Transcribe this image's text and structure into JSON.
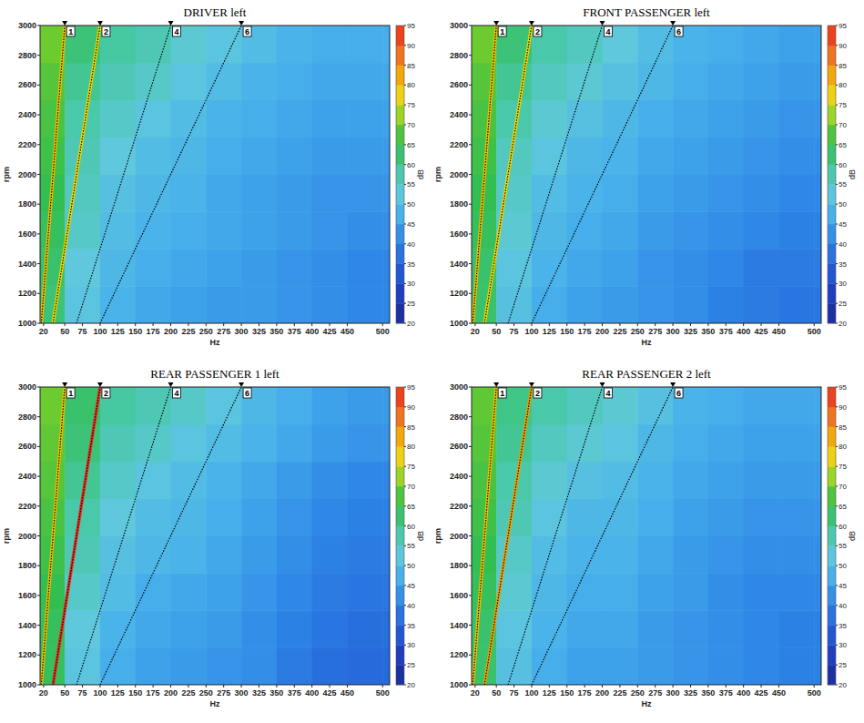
{
  "chart_data": [
    {
      "type": "heatmap",
      "title": "DRIVER left",
      "x_label": "Hz",
      "y_label": "rpm",
      "xlim": [
        15,
        510
      ],
      "ylim": [
        1000,
        3000
      ],
      "xticks": [
        20,
        50,
        75,
        100,
        125,
        150,
        175,
        200,
        225,
        250,
        275,
        300,
        325,
        350,
        375,
        400,
        425,
        450,
        500
      ],
      "yticks": [
        1000,
        1200,
        1400,
        1600,
        1800,
        2000,
        2200,
        2400,
        2600,
        2800,
        3000
      ],
      "x_edges": [
        15,
        50,
        100,
        150,
        200,
        250,
        300,
        350,
        400,
        450,
        500,
        510
      ],
      "y_edges": [
        1000,
        1250,
        1500,
        1750,
        2000,
        2250,
        2500,
        2750,
        3000
      ],
      "cells": [
        [
          62,
          52,
          48,
          46,
          45,
          44,
          44,
          43,
          42,
          41,
          41
        ],
        [
          63,
          53,
          49,
          47,
          46,
          45,
          44,
          43,
          42,
          41,
          41
        ],
        [
          64,
          55,
          50,
          48,
          47,
          46,
          45,
          44,
          43,
          42,
          42
        ],
        [
          65,
          56,
          51,
          49,
          48,
          46,
          45,
          44,
          43,
          43,
          43
        ],
        [
          66,
          57,
          53,
          50,
          49,
          47,
          46,
          45,
          44,
          44,
          44
        ],
        [
          67,
          58,
          55,
          52,
          50,
          48,
          47,
          46,
          45,
          45,
          45
        ],
        [
          68,
          60,
          57,
          55,
          52,
          50,
          48,
          47,
          46,
          46,
          46
        ],
        [
          70,
          62,
          59,
          57,
          54,
          52,
          50,
          48,
          47,
          47,
          47
        ]
      ],
      "colorbar_label": "dB",
      "colorbar_lim": [
        20,
        95
      ],
      "colorbar_ticks": [
        20,
        25,
        30,
        35,
        40,
        45,
        50,
        55,
        60,
        65,
        70,
        75,
        80,
        85,
        90,
        95
      ],
      "series": [
        {
          "name": "1",
          "color": "#f0c000",
          "x": [
            16.7,
            50
          ],
          "y": [
            1000,
            3000
          ]
        },
        {
          "name": "2",
          "color": "#f0d800",
          "x": [
            33.3,
            100
          ],
          "y": [
            1000,
            3000
          ]
        },
        {
          "name": "4",
          "color": "#000000",
          "x": [
            66.7,
            200
          ],
          "y": [
            1000,
            3000
          ]
        },
        {
          "name": "6",
          "color": "#000000",
          "x": [
            100,
            300
          ],
          "y": [
            1000,
            3000
          ]
        }
      ]
    },
    {
      "type": "heatmap",
      "title": "FRONT PASSENGER left",
      "x_label": "Hz",
      "y_label": "rpm",
      "xlim": [
        15,
        510
      ],
      "ylim": [
        1000,
        3000
      ],
      "xticks": [
        20,
        50,
        75,
        100,
        125,
        150,
        175,
        200,
        225,
        250,
        275,
        300,
        325,
        350,
        375,
        400,
        425,
        450,
        500
      ],
      "yticks": [
        1000,
        1200,
        1400,
        1600,
        1800,
        2000,
        2200,
        2400,
        2600,
        2800,
        3000
      ],
      "x_edges": [
        15,
        50,
        100,
        150,
        200,
        250,
        300,
        350,
        400,
        450,
        500,
        510
      ],
      "y_edges": [
        1000,
        1250,
        1500,
        1750,
        2000,
        2250,
        2500,
        2750,
        3000
      ],
      "cells": [
        [
          63,
          51,
          47,
          45,
          44,
          43,
          42,
          40,
          39,
          38,
          38
        ],
        [
          63,
          52,
          48,
          46,
          45,
          43,
          42,
          41,
          39,
          39,
          39
        ],
        [
          64,
          54,
          49,
          47,
          46,
          44,
          43,
          42,
          41,
          40,
          40
        ],
        [
          65,
          55,
          50,
          48,
          47,
          45,
          44,
          43,
          42,
          41,
          41
        ],
        [
          66,
          56,
          52,
          49,
          48,
          46,
          45,
          44,
          43,
          42,
          42
        ],
        [
          67,
          58,
          54,
          51,
          49,
          47,
          46,
          45,
          44,
          43,
          43
        ],
        [
          68,
          60,
          56,
          54,
          51,
          49,
          47,
          46,
          45,
          44,
          44
        ],
        [
          70,
          62,
          58,
          56,
          53,
          50,
          48,
          47,
          46,
          45,
          45
        ]
      ],
      "colorbar_label": "dB",
      "colorbar_lim": [
        20,
        95
      ],
      "colorbar_ticks": [
        20,
        25,
        30,
        35,
        40,
        45,
        50,
        55,
        60,
        65,
        70,
        75,
        80,
        85,
        90,
        95
      ],
      "series": [
        {
          "name": "1",
          "color": "#f0c000",
          "x": [
            16.7,
            50
          ],
          "y": [
            1000,
            3000
          ]
        },
        {
          "name": "2",
          "color": "#f0d800",
          "x": [
            33.3,
            100
          ],
          "y": [
            1000,
            3000
          ]
        },
        {
          "name": "4",
          "color": "#000000",
          "x": [
            66.7,
            200
          ],
          "y": [
            1000,
            3000
          ]
        },
        {
          "name": "6",
          "color": "#000000",
          "x": [
            100,
            300
          ],
          "y": [
            1000,
            3000
          ]
        }
      ]
    },
    {
      "type": "heatmap",
      "title": "REAR PASSENGER 1 left",
      "x_label": "Hz",
      "y_label": "rpm",
      "xlim": [
        15,
        510
      ],
      "ylim": [
        1000,
        3000
      ],
      "xticks": [
        20,
        50,
        75,
        100,
        125,
        150,
        175,
        200,
        225,
        250,
        275,
        300,
        325,
        350,
        375,
        400,
        425,
        450,
        500
      ],
      "yticks": [
        1000,
        1200,
        1400,
        1600,
        1800,
        2000,
        2200,
        2400,
        2600,
        2800,
        3000
      ],
      "x_edges": [
        15,
        50,
        100,
        150,
        200,
        250,
        300,
        350,
        400,
        450,
        500,
        510
      ],
      "y_edges": [
        1000,
        1250,
        1500,
        1750,
        2000,
        2250,
        2500,
        2750,
        3000
      ],
      "cells": [
        [
          64,
          52,
          47,
          45,
          44,
          43,
          42,
          39,
          37,
          36,
          36
        ],
        [
          64,
          53,
          48,
          46,
          45,
          44,
          42,
          40,
          38,
          37,
          37
        ],
        [
          65,
          55,
          50,
          47,
          46,
          45,
          43,
          41,
          39,
          38,
          38
        ],
        [
          66,
          57,
          51,
          49,
          48,
          46,
          44,
          42,
          40,
          39,
          39
        ],
        [
          67,
          58,
          53,
          50,
          49,
          47,
          45,
          43,
          41,
          40,
          40
        ],
        [
          68,
          60,
          55,
          52,
          50,
          48,
          46,
          44,
          42,
          41,
          41
        ],
        [
          69,
          62,
          57,
          55,
          52,
          50,
          48,
          46,
          44,
          43,
          43
        ],
        [
          70,
          63,
          59,
          57,
          55,
          52,
          49,
          47,
          45,
          44,
          44
        ]
      ],
      "colorbar_label": "dB",
      "colorbar_lim": [
        20,
        95
      ],
      "colorbar_ticks": [
        20,
        25,
        30,
        35,
        40,
        45,
        50,
        55,
        60,
        65,
        70,
        75,
        80,
        85,
        90,
        95
      ],
      "series": [
        {
          "name": "1",
          "color": "#f0c000",
          "x": [
            16.7,
            50
          ],
          "y": [
            1000,
            3000
          ]
        },
        {
          "name": "2",
          "color": "#e83020",
          "x": [
            33.3,
            100
          ],
          "y": [
            1000,
            3000
          ]
        },
        {
          "name": "4",
          "color": "#000000",
          "x": [
            66.7,
            200
          ],
          "y": [
            1000,
            3000
          ]
        },
        {
          "name": "6",
          "color": "#000000",
          "x": [
            100,
            300
          ],
          "y": [
            1000,
            3000
          ]
        }
      ]
    },
    {
      "type": "heatmap",
      "title": "REAR PASSENGER 2 left",
      "x_label": "Hz",
      "y_label": "rpm",
      "xlim": [
        15,
        510
      ],
      "ylim": [
        1000,
        3000
      ],
      "xticks": [
        20,
        50,
        75,
        100,
        125,
        150,
        175,
        200,
        225,
        250,
        275,
        300,
        325,
        350,
        375,
        400,
        425,
        450,
        500
      ],
      "yticks": [
        1000,
        1200,
        1400,
        1600,
        1800,
        2000,
        2200,
        2400,
        2600,
        2800,
        3000
      ],
      "x_edges": [
        15,
        50,
        100,
        150,
        200,
        250,
        300,
        350,
        400,
        450,
        500,
        510
      ],
      "y_edges": [
        1000,
        1250,
        1500,
        1750,
        2000,
        2250,
        2500,
        2750,
        3000
      ],
      "cells": [
        [
          63,
          51,
          47,
          45,
          45,
          44,
          43,
          42,
          41,
          40,
          40
        ],
        [
          63,
          52,
          48,
          46,
          46,
          44,
          43,
          42,
          41,
          40,
          40
        ],
        [
          64,
          54,
          49,
          47,
          47,
          45,
          44,
          42,
          41,
          41,
          41
        ],
        [
          65,
          55,
          50,
          48,
          48,
          46,
          44,
          43,
          42,
          42,
          42
        ],
        [
          66,
          57,
          52,
          49,
          49,
          47,
          45,
          44,
          43,
          43,
          43
        ],
        [
          67,
          58,
          54,
          51,
          50,
          48,
          46,
          45,
          44,
          44,
          44
        ],
        [
          68,
          60,
          56,
          54,
          52,
          49,
          47,
          46,
          45,
          45,
          45
        ],
        [
          69,
          61,
          58,
          56,
          54,
          51,
          48,
          47,
          46,
          46,
          46
        ]
      ],
      "colorbar_label": "dB",
      "colorbar_lim": [
        20,
        95
      ],
      "colorbar_ticks": [
        20,
        25,
        30,
        35,
        40,
        45,
        50,
        55,
        60,
        65,
        70,
        75,
        80,
        85,
        90,
        95
      ],
      "series": [
        {
          "name": "1",
          "color": "#f0c000",
          "x": [
            16.7,
            50
          ],
          "y": [
            1000,
            3000
          ]
        },
        {
          "name": "2",
          "color": "#f0a000",
          "x": [
            33.3,
            100
          ],
          "y": [
            1000,
            3000
          ]
        },
        {
          "name": "4",
          "color": "#000000",
          "x": [
            66.7,
            200
          ],
          "y": [
            1000,
            3000
          ]
        },
        {
          "name": "6",
          "color": "#000000",
          "x": [
            100,
            300
          ],
          "y": [
            1000,
            3000
          ]
        }
      ]
    }
  ]
}
